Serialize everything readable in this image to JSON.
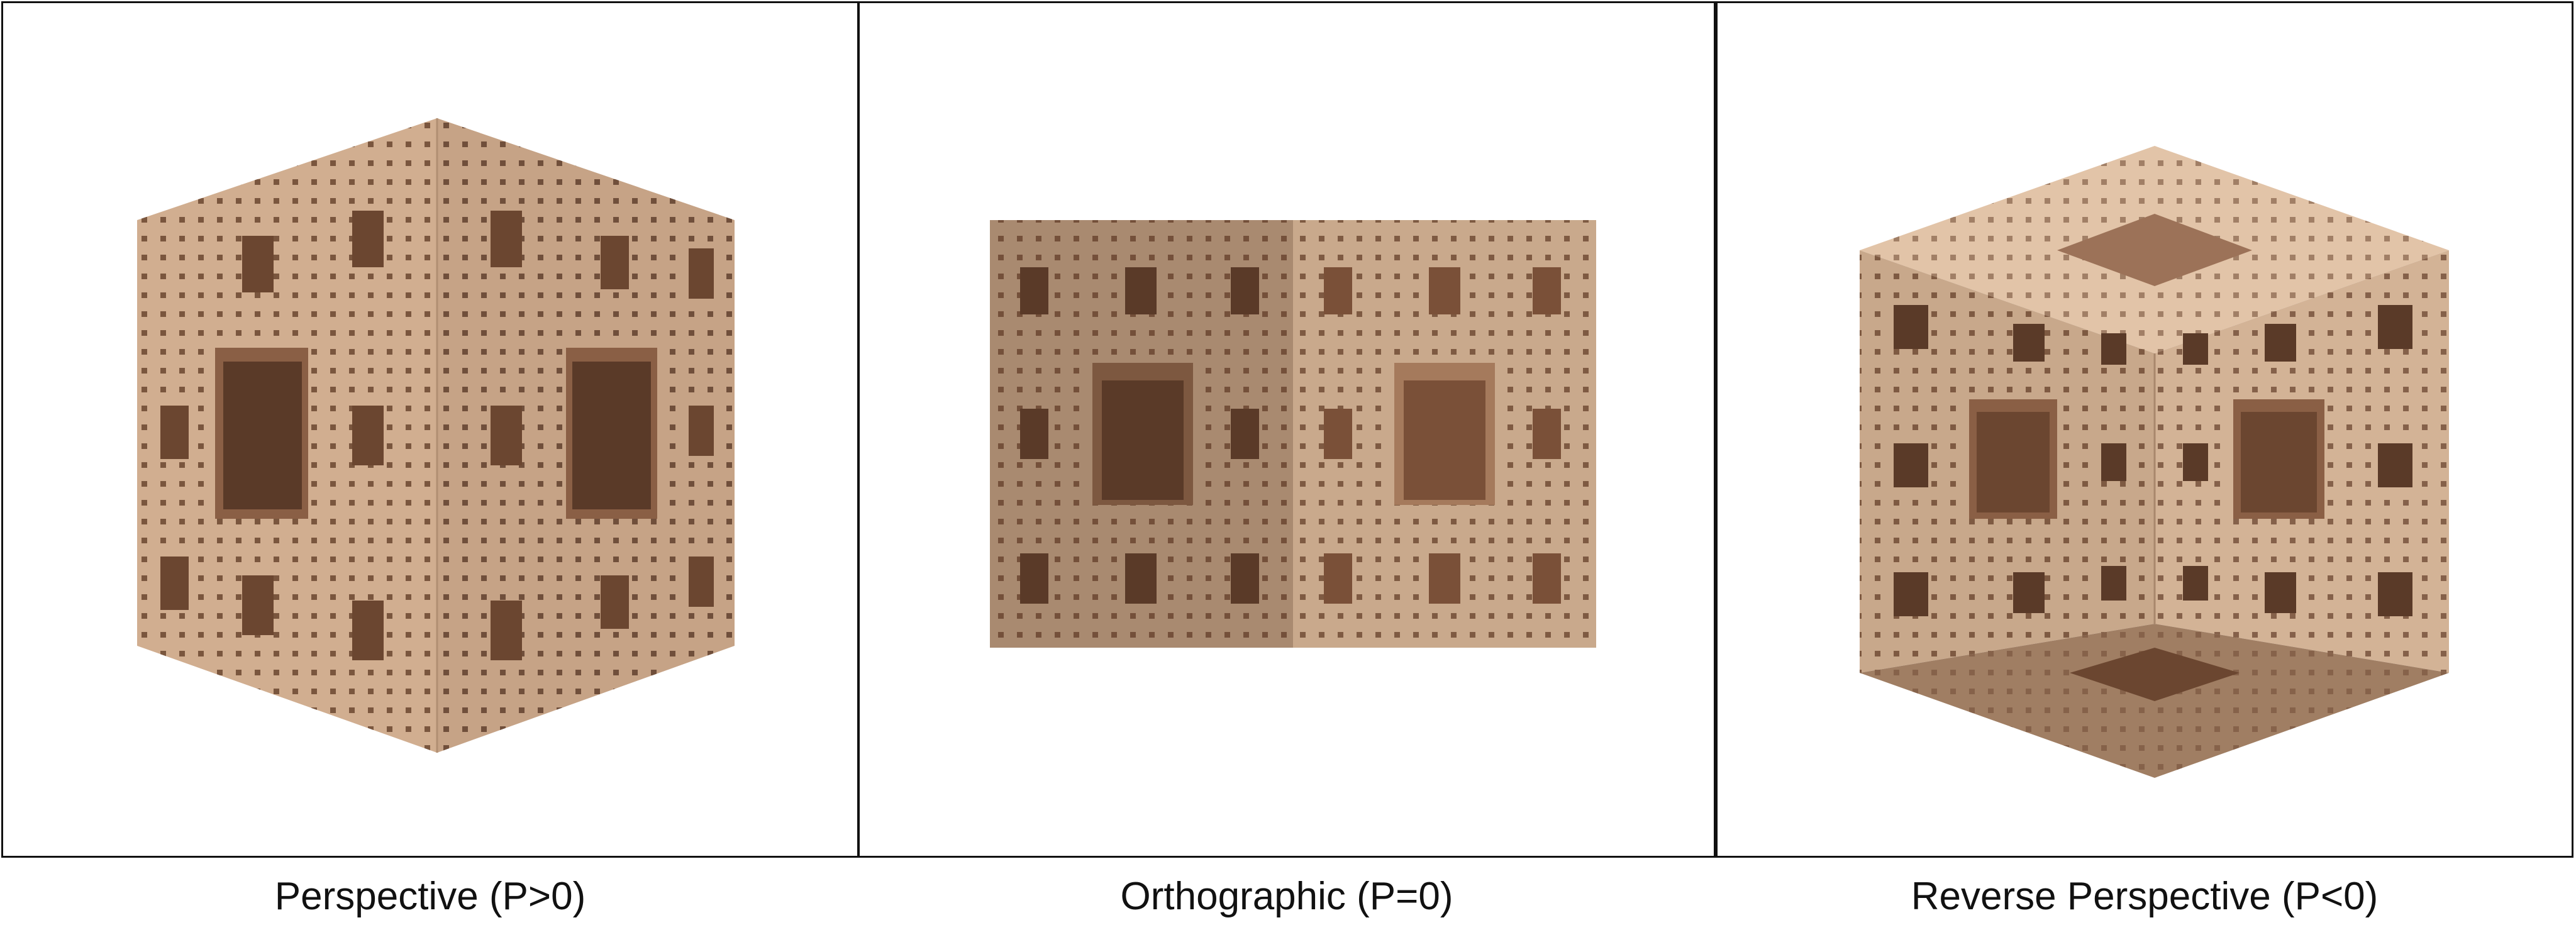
{
  "panels": [
    {
      "id": "perspective",
      "caption": "Perspective (P>0)"
    },
    {
      "id": "orthographic",
      "caption": "Orthographic (P=0)"
    },
    {
      "id": "reverse-perspective",
      "caption": "Reverse Perspective (P<0)"
    }
  ],
  "colors": {
    "light_face": "#d6b496",
    "mid_face": "#c2a083",
    "dark_face": "#a98a70",
    "hole_deep": "#5a3a28",
    "hole_mid": "#8a5f45",
    "border": "#111111"
  }
}
